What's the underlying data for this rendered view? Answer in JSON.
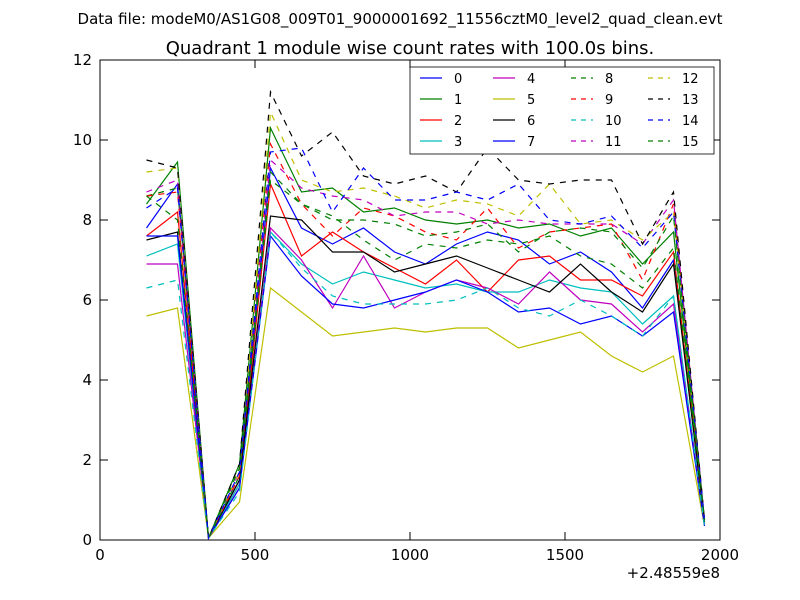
{
  "chart_data": {
    "type": "line",
    "suptitle": "Data file: modeM0/AS1G08_009T01_9000001692_11556cztM0_level2_quad_clean.evt",
    "title": "Quadrant 1 module wise count rates with 100.0s bins.",
    "xlabel": "",
    "ylabel": "",
    "x_offset_label": "+2.48559e8",
    "xlim": [
      0,
      2000
    ],
    "ylim": [
      0,
      12
    ],
    "x_ticks": [
      0,
      500,
      1000,
      1500,
      2000
    ],
    "x_tick_labels": [
      "0",
      "500",
      "1000",
      "1500",
      "2000"
    ],
    "y_ticks": [
      0,
      2,
      4,
      6,
      8,
      10,
      12
    ],
    "y_tick_labels": [
      "0",
      "2",
      "4",
      "6",
      "8",
      "10",
      "12"
    ],
    "grid": false,
    "legend_position": "top-right",
    "legend_columns": 4,
    "x": [
      150,
      250,
      350,
      450,
      550,
      650,
      750,
      850,
      950,
      1050,
      1150,
      1250,
      1350,
      1450,
      1550,
      1650,
      1750,
      1850,
      1950
    ],
    "series": [
      {
        "name": "0",
        "color": "#0000ff",
        "dash": "solid",
        "values": [
          7.8,
          8.9,
          0.05,
          1.5,
          9.3,
          7.8,
          7.4,
          7.8,
          7.2,
          6.9,
          7.4,
          7.7,
          7.5,
          6.9,
          7.2,
          6.7,
          5.8,
          7.0,
          0.5
        ]
      },
      {
        "name": "1",
        "color": "#008000",
        "dash": "solid",
        "values": [
          8.4,
          9.45,
          0.05,
          1.9,
          10.3,
          8.7,
          8.8,
          8.2,
          8.3,
          8.0,
          7.9,
          8.0,
          7.8,
          7.9,
          7.6,
          7.8,
          6.9,
          7.7,
          0.5
        ]
      },
      {
        "name": "2",
        "color": "#ff0000",
        "dash": "solid",
        "values": [
          7.6,
          8.2,
          0.05,
          1.4,
          8.9,
          7.1,
          7.7,
          7.2,
          6.8,
          6.4,
          7.0,
          6.2,
          7.0,
          7.1,
          6.5,
          6.5,
          6.1,
          7.2,
          0.4
        ]
      },
      {
        "name": "3",
        "color": "#00bfbf",
        "dash": "solid",
        "values": [
          7.1,
          7.4,
          0.05,
          1.4,
          7.7,
          6.9,
          6.4,
          6.7,
          6.5,
          6.3,
          6.4,
          6.2,
          6.2,
          6.5,
          6.3,
          6.2,
          5.4,
          6.1,
          0.4
        ]
      },
      {
        "name": "4",
        "color": "#bf00bf",
        "dash": "solid",
        "values": [
          6.9,
          6.9,
          0.05,
          1.3,
          7.8,
          7.0,
          5.8,
          7.1,
          5.8,
          6.2,
          6.5,
          6.3,
          5.9,
          6.7,
          6.0,
          5.9,
          5.2,
          5.9,
          0.4
        ]
      },
      {
        "name": "5",
        "color": "#bfbf00",
        "dash": "solid",
        "values": [
          5.6,
          5.8,
          0.05,
          0.95,
          6.3,
          5.7,
          5.1,
          5.2,
          5.3,
          5.2,
          5.3,
          5.3,
          4.8,
          5.0,
          5.2,
          4.6,
          4.2,
          4.6,
          0.35
        ]
      },
      {
        "name": "6",
        "color": "#000000",
        "dash": "solid",
        "values": [
          7.5,
          7.7,
          0.05,
          1.5,
          8.1,
          8.0,
          7.2,
          7.2,
          6.7,
          6.9,
          7.1,
          6.8,
          6.5,
          6.2,
          6.9,
          6.2,
          5.7,
          6.9,
          0.45
        ]
      },
      {
        "name": "7",
        "color": "#0000ff",
        "dash": "solid",
        "values": [
          7.6,
          7.6,
          0.05,
          1.3,
          7.6,
          6.6,
          5.9,
          5.8,
          6.0,
          6.2,
          6.5,
          6.2,
          5.7,
          5.8,
          5.4,
          5.6,
          5.1,
          5.7,
          0.35
        ]
      },
      {
        "name": "8",
        "color": "#008000",
        "dash": "dashed",
        "values": [
          8.6,
          8.8,
          0.05,
          1.6,
          9.0,
          8.4,
          8.1,
          7.5,
          7.0,
          7.4,
          7.3,
          7.5,
          7.4,
          7.6,
          7.1,
          6.9,
          6.3,
          7.3,
          0.45
        ]
      },
      {
        "name": "9",
        "color": "#ff0000",
        "dash": "dashed",
        "values": [
          8.6,
          8.7,
          0.05,
          1.6,
          9.9,
          8.4,
          7.6,
          8.3,
          8.1,
          7.7,
          7.5,
          8.3,
          7.3,
          7.7,
          7.8,
          7.9,
          6.5,
          8.4,
          0.5
        ]
      },
      {
        "name": "10",
        "color": "#00bfbf",
        "dash": "dashed",
        "values": [
          6.3,
          6.5,
          0.05,
          1.2,
          7.7,
          6.8,
          6.1,
          5.9,
          5.9,
          5.9,
          6.0,
          6.3,
          5.8,
          5.6,
          6.0,
          5.6,
          5.1,
          6.1,
          0.35
        ]
      },
      {
        "name": "11",
        "color": "#bf00bf",
        "dash": "dashed",
        "values": [
          8.7,
          9.0,
          0.05,
          1.7,
          9.5,
          8.8,
          8.6,
          8.5,
          8.1,
          8.2,
          8.2,
          7.9,
          8.0,
          7.9,
          7.9,
          7.9,
          7.4,
          8.5,
          0.5
        ]
      },
      {
        "name": "12",
        "color": "#bfbf00",
        "dash": "dashed",
        "values": [
          9.2,
          9.3,
          0.05,
          1.7,
          10.7,
          9.0,
          8.7,
          8.8,
          8.6,
          8.3,
          8.5,
          8.4,
          8.1,
          8.9,
          7.9,
          8.0,
          7.5,
          8.2,
          0.5
        ]
      },
      {
        "name": "13",
        "color": "#000000",
        "dash": "dashed",
        "values": [
          9.5,
          9.3,
          0.05,
          1.9,
          11.2,
          9.6,
          10.2,
          9.1,
          8.9,
          9.1,
          8.7,
          9.8,
          9.0,
          8.9,
          9.0,
          9.0,
          7.4,
          8.7,
          0.5
        ]
      },
      {
        "name": "14",
        "color": "#0000ff",
        "dash": "dashed",
        "values": [
          8.3,
          8.8,
          0.05,
          1.7,
          9.7,
          9.8,
          8.2,
          9.3,
          8.5,
          8.5,
          8.7,
          8.5,
          8.9,
          8.0,
          7.9,
          8.1,
          7.3,
          8.2,
          0.5
        ]
      },
      {
        "name": "15",
        "color": "#008000",
        "dash": "dashed",
        "values": [
          8.6,
          8.0,
          0.05,
          1.8,
          9.2,
          8.4,
          8.0,
          8.0,
          7.9,
          7.6,
          7.7,
          7.9,
          7.2,
          7.7,
          7.8,
          7.7,
          6.8,
          8.1,
          0.5
        ]
      }
    ]
  }
}
